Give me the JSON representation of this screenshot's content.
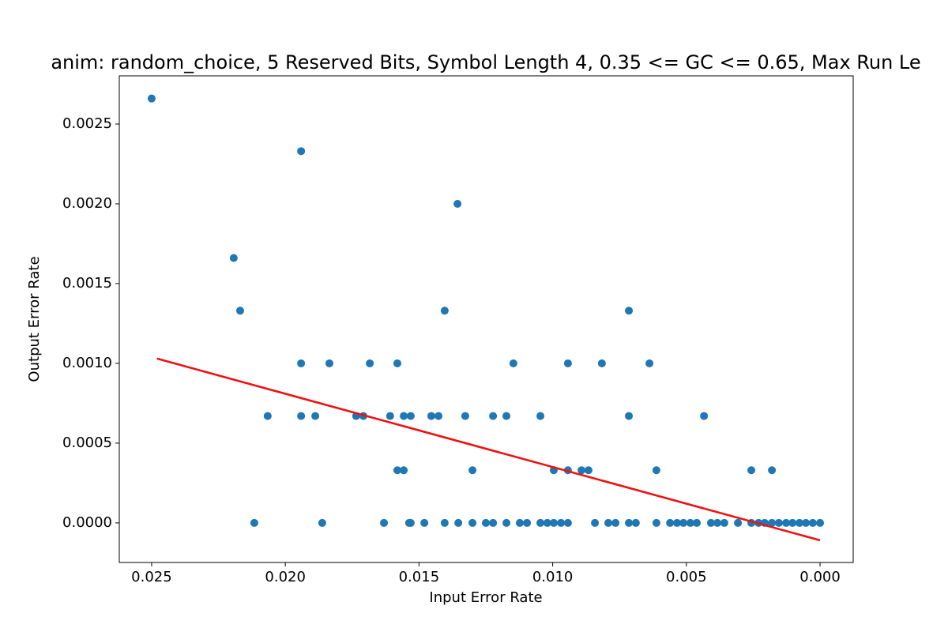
{
  "chart_data": {
    "type": "scatter",
    "title": "anim: random_choice, 5 Reserved Bits, Symbol Length 4, 0.35 <= GC <= 0.65, Max Run Le",
    "x_label": "Input Error Rate",
    "y_label": "Output Error Rate",
    "xlim": [
      0.02621,
      -0.00124
    ],
    "ylim": [
      -0.000248,
      0.002802
    ],
    "xticks": [
      0.025,
      {
        "value": 0.02,
        "label": "0.020"
      },
      0.015,
      {
        "value": 0.01,
        "label": "0.010"
      },
      0.005,
      {
        "value": 0,
        "label": "0.000"
      }
    ],
    "yticks": [
      {
        "value": 0,
        "label": "0.0000"
      },
      {
        "value": 0.0005,
        "label": "0.0005"
      },
      {
        "value": 0.001,
        "label": "0.0010"
      },
      {
        "value": 0.0015,
        "label": "0.0015"
      },
      {
        "value": 0.002,
        "label": "0.0020"
      },
      {
        "value": 0.0025,
        "label": "0.0025"
      }
    ],
    "series": [
      {
        "color": "#1f77b4",
        "x": [
          0.025,
          0.01941,
          0.02193,
          0.02169,
          0.01356,
          0.01404,
          0.00715,
          0.01941,
          0.01835,
          0.01684,
          0.01581,
          0.01147,
          0.00943,
          0.00816,
          0.00638,
          0.02066,
          0.01941,
          0.01888,
          0.01735,
          0.01708,
          0.01608,
          0.01557,
          0.01531,
          0.01454,
          0.01427,
          0.01327,
          0.01223,
          0.01173,
          0.01046,
          0.00715,
          0.00434,
          0.01581,
          0.01557,
          0.013,
          0.00996,
          0.00943,
          0.00892,
          0.00866,
          0.00612,
          0.00257,
          0.0018,
          0.02116,
          0.01862,
          0.01631,
          0.01537,
          0.01531,
          0.0148,
          0.01404,
          0.01353,
          0.013,
          0.0125,
          0.01223,
          0.01173,
          0.01123,
          0.01096,
          0.01046,
          0.0102,
          0.00996,
          0.00969,
          0.00943,
          0.00842,
          0.00792,
          0.00765,
          0.00715,
          0.00689,
          0.00612,
          0.00561,
          0.00535,
          0.00511,
          0.00485,
          0.00461,
          0.00408,
          0.00384,
          0.00358,
          0.00307,
          0.00257,
          0.0023,
          0.00207,
          0.0018,
          0.00154,
          0.00127,
          0.00103,
          0.00077,
          0.00053,
          0.00027,
          0
        ],
        "values": [
          0.00266,
          0.00233,
          0.00166,
          0.00133,
          0.002,
          0.00133,
          0.00133,
          0.001,
          0.001,
          0.001,
          0.001,
          0.001,
          0.001,
          0.001,
          0.001,
          0.00067,
          0.00067,
          0.00067,
          0.00067,
          0.00067,
          0.00067,
          0.00067,
          0.00067,
          0.00067,
          0.00067,
          0.00067,
          0.00067,
          0.00067,
          0.00067,
          0.00067,
          0.00067,
          0.00033,
          0.00033,
          0.00033,
          0.00033,
          0.00033,
          0.00033,
          0.00033,
          0.00033,
          0.00033,
          0.00033,
          0,
          0,
          0,
          0,
          0,
          0,
          0,
          0,
          0,
          0,
          0,
          0,
          0,
          0,
          0,
          0,
          0,
          0,
          0,
          0,
          0,
          0,
          0,
          0,
          0,
          0,
          0,
          0,
          0,
          0,
          0,
          0,
          0,
          0,
          0,
          0,
          0,
          0,
          0,
          0,
          0,
          0,
          0,
          0,
          0
        ]
      }
    ],
    "fit_line": {
      "color": "#ee1111",
      "x": [
        0.0248,
        0
      ],
      "values": [
        0.00103,
        -0.000109
      ]
    }
  }
}
